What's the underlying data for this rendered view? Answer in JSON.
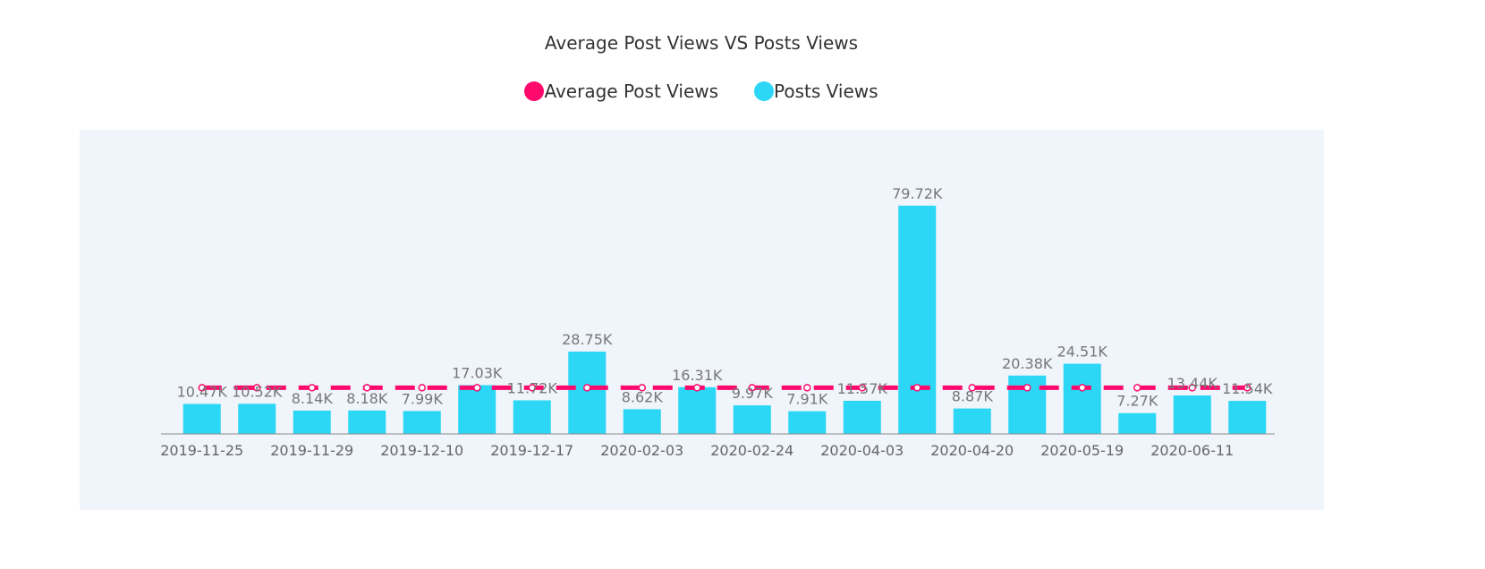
{
  "chart_data": {
    "type": "bar",
    "title": "Average Post Views VS Posts Views",
    "legend": [
      {
        "name": "Average Post Views",
        "color": "#ff0a6c"
      },
      {
        "name": "Posts Views",
        "color": "#2bd7f5"
      }
    ],
    "legend_position": "top-center",
    "x_tick_labels": [
      "2019-11-25",
      "2019-11-29",
      "2019-12-10",
      "2019-12-17",
      "2020-02-03",
      "2020-02-24",
      "2020-04-03",
      "2020-04-20",
      "2020-05-19",
      "2020-06-11"
    ],
    "series": [
      {
        "name": "Posts Views",
        "type": "bar",
        "values": [
          10.47,
          10.52,
          8.14,
          8.18,
          7.99,
          17.03,
          11.72,
          28.75,
          8.62,
          16.31,
          9.97,
          7.91,
          11.57,
          79.72,
          8.87,
          20.38,
          24.51,
          7.27,
          13.44,
          11.54
        ],
        "labels": [
          "10.47K",
          "10.52K",
          "8.14K",
          "8.18K",
          "7.99K",
          "17.03K",
          "11.72K",
          "28.75K",
          "8.62K",
          "16.31K",
          "9.97K",
          "7.91K",
          "11.57K",
          "79.72K",
          "8.87K",
          "20.38K",
          "24.51K",
          "7.27K",
          "13.44K",
          "11.54K"
        ]
      },
      {
        "name": "Average Post Views",
        "type": "line",
        "style": "dashed",
        "value": 16.15
      }
    ],
    "ylim": [
      0,
      80
    ],
    "unit": "K"
  }
}
